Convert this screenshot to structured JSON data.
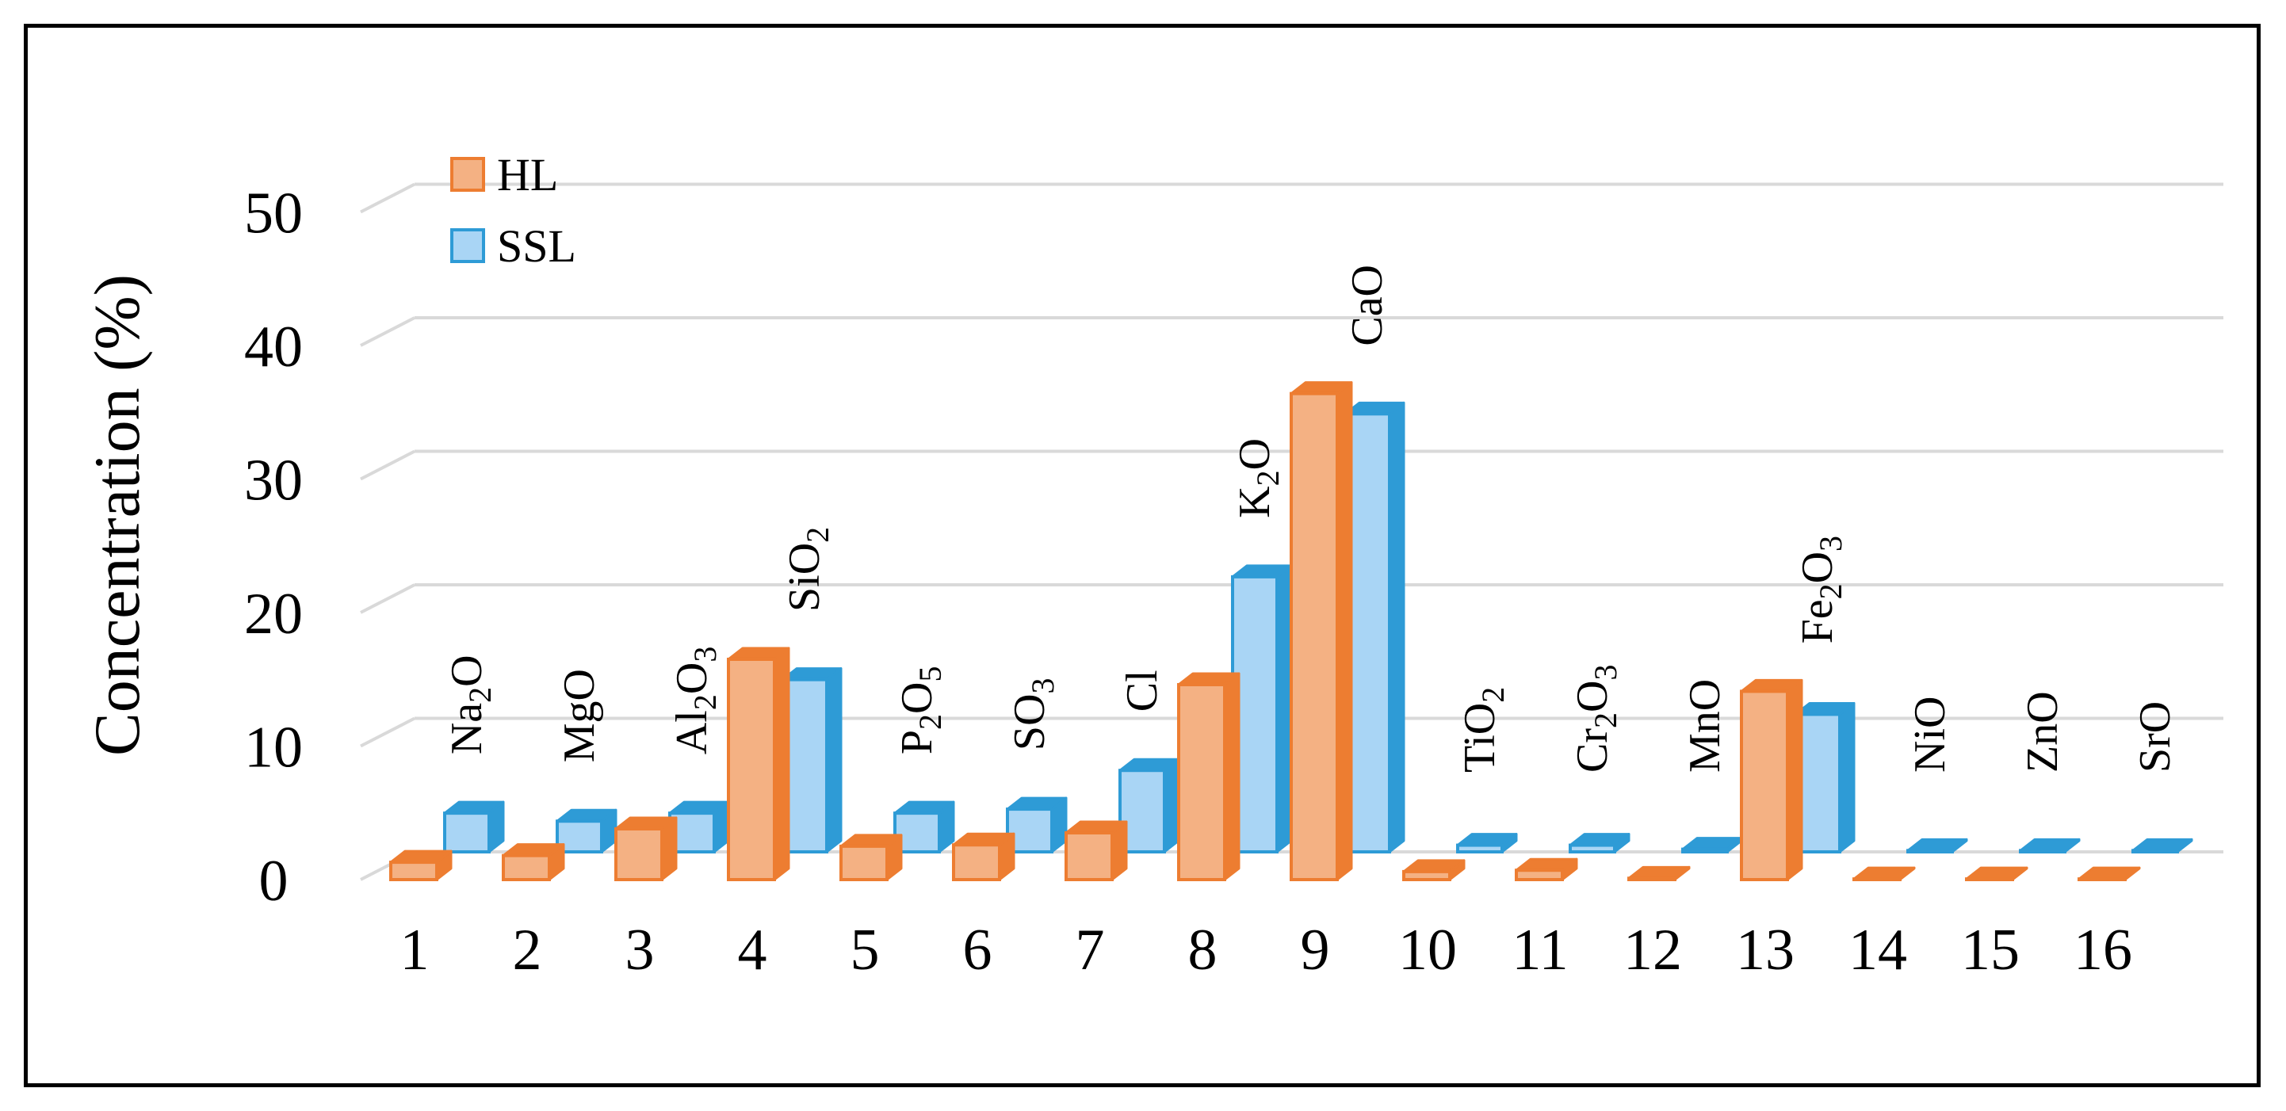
{
  "chart_data": {
    "type": "bar",
    "style": "3d-clustered-column",
    "ylabel": "Concentration (%)",
    "ylim": [
      0,
      50
    ],
    "yticks": [
      "0",
      "10",
      "20",
      "30",
      "40",
      "50"
    ],
    "grid": true,
    "legend_position": "top-left",
    "categories": [
      "1",
      "2",
      "3",
      "4",
      "5",
      "6",
      "7",
      "8",
      "9",
      "10",
      "11",
      "12",
      "13",
      "14",
      "15",
      "16"
    ],
    "annotations": [
      {
        "base": "Na",
        "sub": "2",
        "tail": "O"
      },
      {
        "base": "MgO",
        "sub": "",
        "tail": ""
      },
      {
        "base": "Al",
        "sub": "2",
        "tail": "O",
        "sub2": "3"
      },
      {
        "base": "SiO",
        "sub": "2",
        "tail": ""
      },
      {
        "base": "P",
        "sub": "2",
        "tail": "O",
        "sub2": "5"
      },
      {
        "base": "SO",
        "sub": "3",
        "tail": ""
      },
      {
        "base": "Cl",
        "sub": "",
        "tail": ""
      },
      {
        "base": "K",
        "sub": "2",
        "tail": "O"
      },
      {
        "base": "CaO",
        "sub": "",
        "tail": ""
      },
      {
        "base": "TiO",
        "sub": "2",
        "tail": ""
      },
      {
        "base": "Cr",
        "sub": "2",
        "tail": "O",
        "sub2": "3"
      },
      {
        "base": "MnO",
        "sub": "",
        "tail": ""
      },
      {
        "base": "Fe",
        "sub": "2",
        "tail": "O",
        "sub2": "3"
      },
      {
        "base": "NiO",
        "sub": "",
        "tail": ""
      },
      {
        "base": "ZnO",
        "sub": "",
        "tail": ""
      },
      {
        "base": "SrO",
        "sub": "",
        "tail": ""
      }
    ],
    "series": [
      {
        "name": "HL",
        "color": "#F4B183",
        "edge": "#ED7D31",
        "values": [
          1.3,
          1.8,
          3.8,
          16.5,
          2.5,
          2.6,
          3.5,
          14.6,
          36.4,
          0.6,
          0.7,
          0.1,
          14.1,
          0.05,
          0.05,
          0.05
        ]
      },
      {
        "name": "SSL",
        "color": "#A9D5F5",
        "edge": "#2E9BD6",
        "values": [
          2.9,
          2.3,
          2.9,
          12.9,
          2.9,
          3.2,
          6.1,
          20.6,
          32.8,
          0.5,
          0.5,
          0.2,
          10.3,
          0.1,
          0.1,
          0.1
        ]
      }
    ]
  }
}
